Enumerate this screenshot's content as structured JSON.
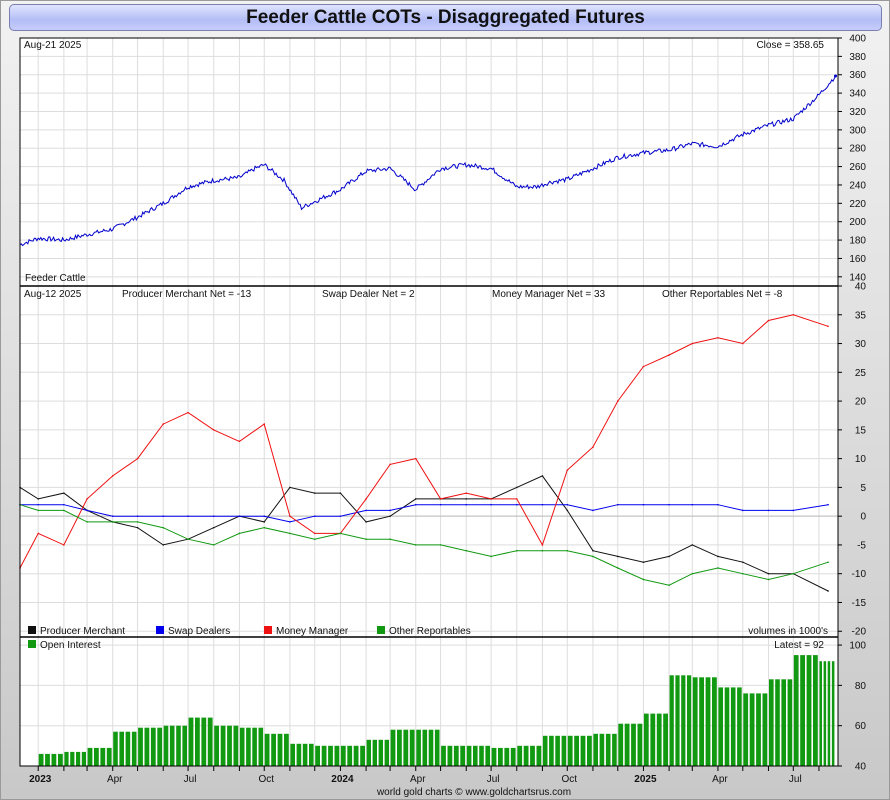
{
  "title": "Feeder Cattle COTs - Disaggregated Futures",
  "footer": "world gold charts © www.goldchartsrus.com",
  "price_panel": {
    "date": "Aug-21  2025",
    "close_label": "Close = 358.65",
    "name": "Feeder Cattle"
  },
  "cot_panel": {
    "date": "Aug-12  2025",
    "labels": {
      "producer": "Producer Merchant Net = -13",
      "swap": "Swap Dealer Net = 2",
      "money": "Money Manager Net = 33",
      "other": "Other Reportables Net = -8"
    }
  },
  "legend": {
    "producer": "Producer Merchant",
    "swap": "Swap Dealers",
    "money": "Money Manager",
    "other": "Other Reportables",
    "volumes_note": "volumes in 1000's"
  },
  "oi_panel": {
    "legend": "Open Interest",
    "latest_label": "Latest = 92"
  },
  "colors": {
    "price": "#0000cc",
    "producer": "#111111",
    "swap": "#0000ee",
    "money": "#ee1111",
    "other": "#119911",
    "oi": "#119911"
  },
  "chart_data": [
    {
      "type": "line",
      "name": "Feeder Cattle price",
      "x": [
        "2022-12-10",
        "2023-01-01",
        "2023-02-01",
        "2023-03-01",
        "2023-04-01",
        "2023-05-01",
        "2023-06-01",
        "2023-07-01",
        "2023-08-01",
        "2023-09-01",
        "2023-09-20",
        "2023-10-01",
        "2023-10-25",
        "2023-11-15",
        "2023-12-01",
        "2024-01-01",
        "2024-02-01",
        "2024-03-01",
        "2024-04-01",
        "2024-05-01",
        "2024-06-01",
        "2024-07-01",
        "2024-08-01",
        "2024-08-25",
        "2024-09-10",
        "2024-10-01",
        "2024-11-01",
        "2024-12-01",
        "2025-01-01",
        "2025-02-01",
        "2025-03-01",
        "2025-04-01",
        "2025-05-01",
        "2025-06-01",
        "2025-07-01",
        "2025-08-01",
        "2025-08-21"
      ],
      "y": [
        175,
        182,
        180,
        186,
        192,
        205,
        220,
        238,
        245,
        248,
        258,
        262,
        245,
        215,
        222,
        235,
        255,
        258,
        235,
        258,
        262,
        258,
        238,
        238,
        243,
        246,
        258,
        270,
        275,
        278,
        285,
        282,
        295,
        305,
        312,
        338,
        358.65
      ],
      "ylim": [
        130,
        400
      ],
      "yticks": [
        140,
        160,
        180,
        200,
        220,
        240,
        260,
        280,
        300,
        320,
        340,
        360,
        380,
        400
      ]
    },
    {
      "type": "line",
      "x": [
        "2022-12-10",
        "2023-01-01",
        "2023-02-01",
        "2023-03-01",
        "2023-04-01",
        "2023-05-01",
        "2023-06-01",
        "2023-07-01",
        "2023-08-01",
        "2023-09-01",
        "2023-10-01",
        "2023-11-01",
        "2023-12-01",
        "2024-01-01",
        "2024-02-01",
        "2024-03-01",
        "2024-04-01",
        "2024-05-01",
        "2024-06-01",
        "2024-07-01",
        "2024-08-01",
        "2024-09-01",
        "2024-10-01",
        "2024-11-01",
        "2024-12-01",
        "2025-01-01",
        "2025-02-01",
        "2025-03-01",
        "2025-04-01",
        "2025-05-01",
        "2025-06-01",
        "2025-07-01",
        "2025-08-12"
      ],
      "series": [
        {
          "name": "Producer Merchant",
          "values": [
            5,
            3,
            4,
            1,
            -1,
            -2,
            -5,
            -4,
            -2,
            0,
            -1,
            5,
            4,
            4,
            -1,
            0,
            3,
            3,
            3,
            3,
            5,
            7,
            1,
            -6,
            -7,
            -8,
            -7,
            -5,
            -7,
            -8,
            -10,
            -10,
            -13
          ]
        },
        {
          "name": "Swap Dealers",
          "values": [
            2,
            2,
            2,
            1,
            0,
            0,
            0,
            0,
            0,
            0,
            0,
            -1,
            0,
            0,
            1,
            1,
            2,
            2,
            2,
            2,
            2,
            2,
            2,
            1,
            2,
            2,
            2,
            2,
            2,
            1,
            1,
            1,
            2
          ]
        },
        {
          "name": "Money Manager",
          "values": [
            -9,
            -3,
            -5,
            3,
            7,
            10,
            16,
            18,
            15,
            13,
            16,
            0,
            -3,
            -3,
            3,
            9,
            10,
            3,
            4,
            3,
            3,
            -5,
            8,
            12,
            20,
            26,
            28,
            30,
            31,
            30,
            34,
            35,
            33
          ]
        },
        {
          "name": "Other Reportables",
          "values": [
            2,
            1,
            1,
            -1,
            -1,
            -1,
            -2,
            -4,
            -5,
            -3,
            -2,
            -3,
            -4,
            -3,
            -4,
            -4,
            -5,
            -5,
            -6,
            -7,
            -6,
            -6,
            -6,
            -7,
            -9,
            -11,
            -12,
            -10,
            -9,
            -10,
            -11,
            -10,
            -8
          ]
        }
      ],
      "ylim": [
        -21,
        40
      ],
      "yticks": [
        -20,
        -15,
        -10,
        -5,
        0,
        5,
        10,
        15,
        20,
        25,
        30,
        35,
        40
      ]
    },
    {
      "type": "bar",
      "name": "Open Interest",
      "x": [
        "2023-01",
        "2023-02",
        "2023-03",
        "2023-04",
        "2023-05",
        "2023-06",
        "2023-07",
        "2023-08",
        "2023-09",
        "2023-10",
        "2023-11",
        "2023-12",
        "2024-01",
        "2024-02",
        "2024-03",
        "2024-04",
        "2024-05",
        "2024-06",
        "2024-07",
        "2024-08",
        "2024-09",
        "2024-10",
        "2024-11",
        "2024-12",
        "2025-01",
        "2025-02",
        "2025-03",
        "2025-04",
        "2025-05",
        "2025-06",
        "2025-07",
        "2025-08"
      ],
      "values": [
        46,
        47,
        49,
        57,
        59,
        60,
        64,
        60,
        59,
        56,
        51,
        50,
        50,
        53,
        58,
        58,
        50,
        50,
        49,
        50,
        55,
        55,
        56,
        61,
        66,
        85,
        84,
        79,
        76,
        83,
        95,
        92
      ],
      "ylim": [
        40,
        104
      ],
      "yticks": [
        40,
        60,
        80,
        100
      ]
    }
  ],
  "x_axis": {
    "tick_labels": [
      "2023",
      "Apr",
      "Jul",
      "Oct",
      "2024",
      "Apr",
      "Jul",
      "Oct",
      "2025",
      "Apr",
      "Jul"
    ],
    "bold": [
      true,
      false,
      false,
      false,
      true,
      false,
      false,
      false,
      true,
      false,
      false
    ]
  }
}
